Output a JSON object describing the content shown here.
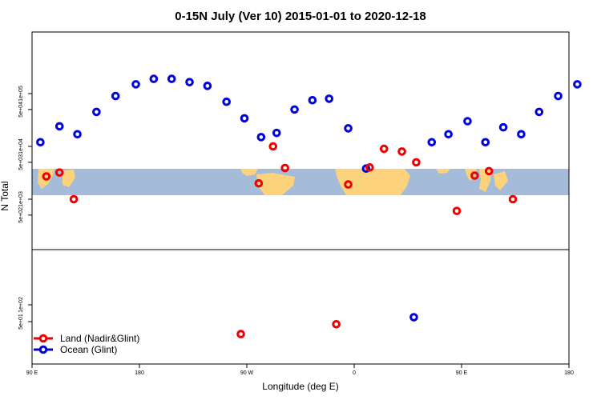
{
  "chart_data": {
    "type": "scatter",
    "title_main": "0-15N July (Ver 10)",
    "title_dates": "2015-01-01 to 2020-12-18",
    "xlabel": "Longitude (deg E)",
    "ylabel": "N Total",
    "x_axis": {
      "range": [
        90,
        450
      ],
      "ticks": [
        {
          "value": 90,
          "label": "90 E"
        },
        {
          "value": 180,
          "label": "180"
        },
        {
          "value": 270,
          "label": "90 W"
        },
        {
          "value": 360,
          "label": "0"
        },
        {
          "value": 450,
          "label": "90 E"
        },
        {
          "value": 540,
          "label": "180"
        }
      ]
    },
    "y_axis": {
      "scale": "log",
      "upper_ticks": [
        "1e+05",
        "5e+04",
        "1e+04",
        "5e+03",
        "1e+03",
        "5e+02"
      ],
      "lower_ticks": [
        "1e+02",
        "5e+01"
      ]
    },
    "legend": {
      "position": "bottom-left",
      "entries": [
        {
          "label": "Land (Nadir&Glint)",
          "color": "#ee0000"
        },
        {
          "label": "Ocean (Glint)",
          "color": "#0000dd"
        }
      ]
    },
    "map_colors": {
      "ocean": "#a4bcd9",
      "land": "#fcd27c"
    },
    "series": [
      {
        "name": "Ocean (Glint)",
        "color": "#0000dd",
        "points": [
          {
            "lon": 97,
            "value": 12000
          },
          {
            "lon": 113,
            "value": 24000
          },
          {
            "lon": 128,
            "value": 17000
          },
          {
            "lon": 144,
            "value": 45000
          },
          {
            "lon": 160,
            "value": 90000
          },
          {
            "lon": 177,
            "value": 150000
          },
          {
            "lon": 192,
            "value": 190000
          },
          {
            "lon": 207,
            "value": 190000
          },
          {
            "lon": 222,
            "value": 165000
          },
          {
            "lon": 237,
            "value": 140000
          },
          {
            "lon": 253,
            "value": 70000
          },
          {
            "lon": 268,
            "value": 34000
          },
          {
            "lon": 282,
            "value": 15000
          },
          {
            "lon": 295,
            "value": 18000
          },
          {
            "lon": 310,
            "value": 50000
          },
          {
            "lon": 325,
            "value": 75000
          },
          {
            "lon": 339,
            "value": 80000
          },
          {
            "lon": 355,
            "value": 22000
          },
          {
            "lon": 370,
            "value": 3800
          },
          {
            "lon": 410,
            "value": 60
          },
          {
            "lon": 425,
            "value": 12000
          },
          {
            "lon": 439,
            "value": 17000
          },
          {
            "lon": 455,
            "value": 30000
          },
          {
            "lon": 470,
            "value": 12000
          },
          {
            "lon": 485,
            "value": 23000
          },
          {
            "lon": 500,
            "value": 17000
          },
          {
            "lon": 515,
            "value": 45000
          },
          {
            "lon": 531,
            "value": 90000
          },
          {
            "lon": 547,
            "value": 150000
          }
        ]
      },
      {
        "name": "Land (Nadir&Glint)",
        "color": "#ee0000",
        "points": [
          {
            "lon": 102,
            "value": 2700
          },
          {
            "lon": 113,
            "value": 3200
          },
          {
            "lon": 125,
            "value": 1000
          },
          {
            "lon": 280,
            "value": 2000
          },
          {
            "lon": 292,
            "value": 10000
          },
          {
            "lon": 302,
            "value": 3900
          },
          {
            "lon": 355,
            "value": 1900
          },
          {
            "lon": 385,
            "value": 9000
          },
          {
            "lon": 400,
            "value": 8000
          },
          {
            "lon": 373,
            "value": 4000
          },
          {
            "lon": 412,
            "value": 5000
          },
          {
            "lon": 446,
            "value": 600
          },
          {
            "lon": 461,
            "value": 2800
          },
          {
            "lon": 473,
            "value": 3400
          },
          {
            "lon": 493,
            "value": 1000
          },
          {
            "lon": 265,
            "value": 30
          },
          {
            "lon": 345,
            "value": 45
          }
        ]
      }
    ]
  }
}
